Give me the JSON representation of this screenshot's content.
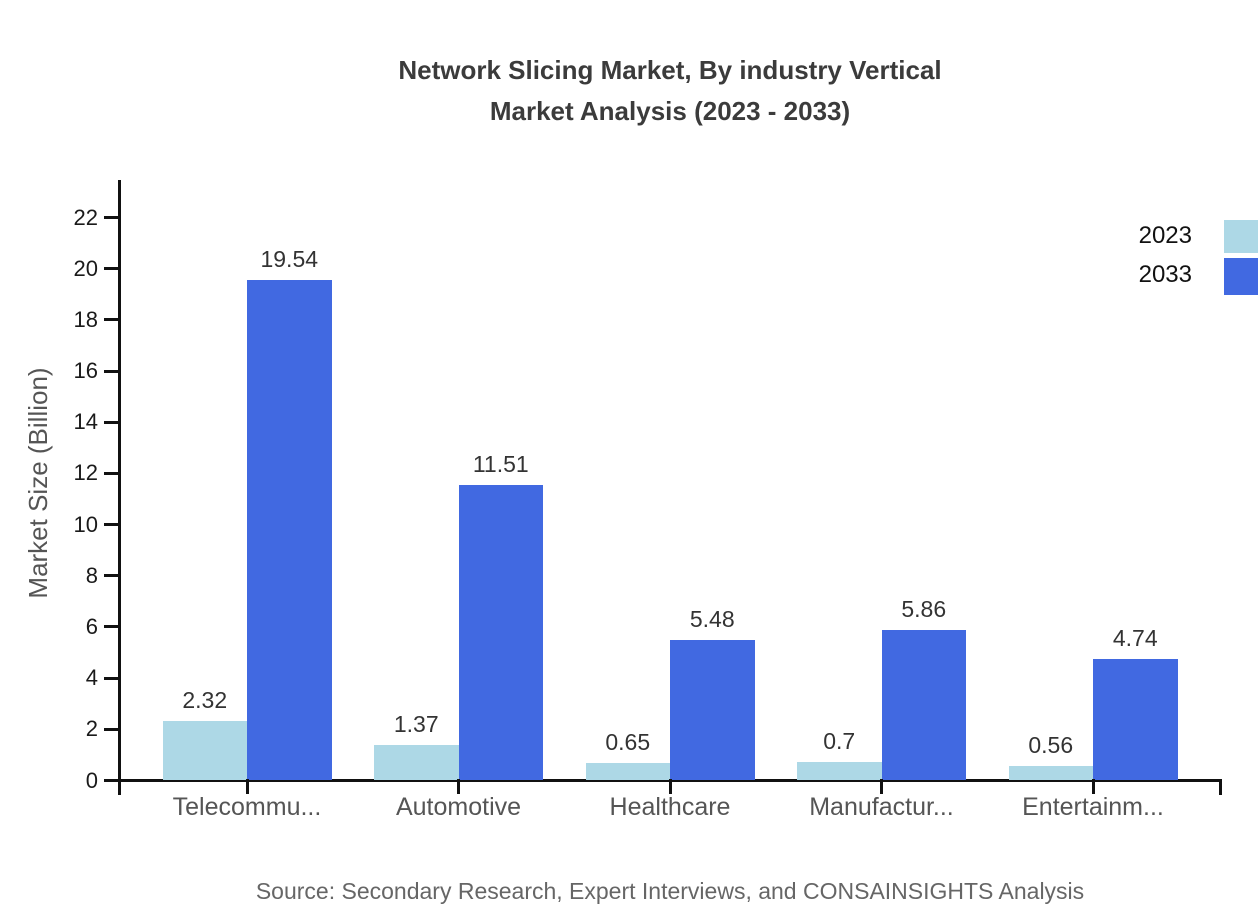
{
  "title": {
    "line1": "Network Slicing Market, By industry Vertical",
    "line2": "Market Analysis (2023 - 2033)"
  },
  "source": "Source: Secondary Research, Expert Interviews, and CONSAINSIGHTS Analysis",
  "chart_data": {
    "type": "bar",
    "categories": [
      "Telecommu...",
      "Automotive",
      "Healthcare",
      "Manufactur...",
      "Entertainm..."
    ],
    "series": [
      {
        "name": "2023",
        "color": "#ADD8E6",
        "values": [
          2.32,
          1.37,
          0.65,
          0.7,
          0.56
        ]
      },
      {
        "name": "2033",
        "color": "#4169E1",
        "values": [
          19.54,
          11.51,
          5.48,
          5.86,
          4.74
        ]
      }
    ],
    "title": "Network Slicing Market, By industry Vertical Market Analysis (2023 - 2033)",
    "xlabel": "",
    "ylabel": "Market Size (Billion)",
    "ylim": [
      0,
      22
    ],
    "yticks": [
      0,
      2,
      4,
      6,
      8,
      10,
      12,
      14,
      16,
      18,
      20,
      22
    ],
    "grid": false,
    "legend_position": "top-right",
    "value_labels": true
  },
  "colors": {
    "axis": "#111111",
    "title_text": "#3b3b3b",
    "category_label": "#555555",
    "value_label": "#333333",
    "source_text": "#666666"
  }
}
